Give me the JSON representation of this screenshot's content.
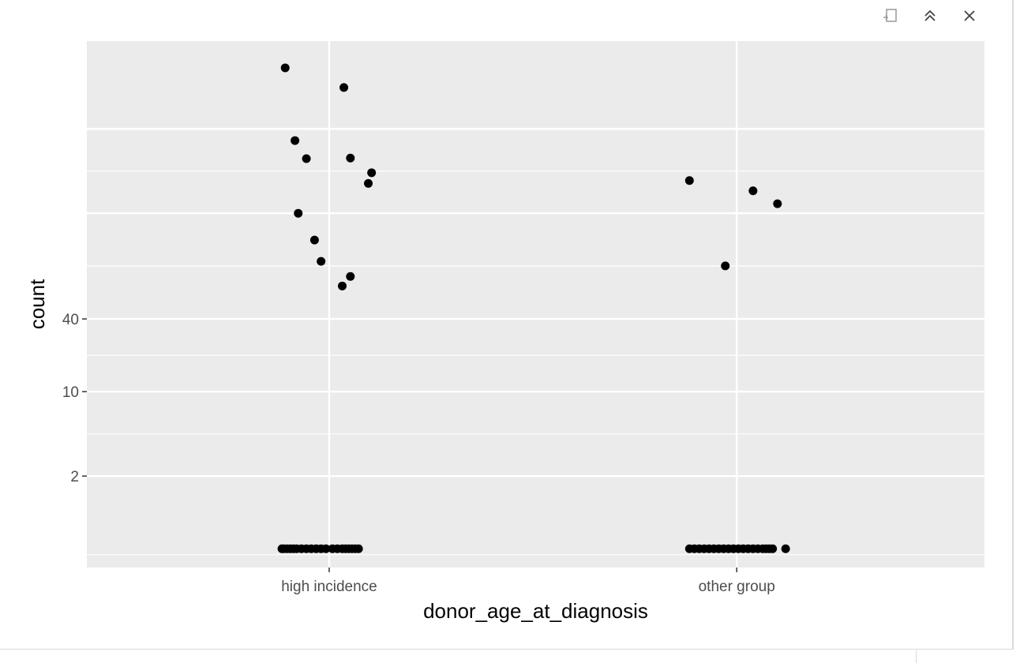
{
  "toolbar": {
    "buttons": [
      {
        "icon": "export-icon"
      },
      {
        "icon": "collapse-up-icon"
      },
      {
        "icon": "close-icon"
      }
    ]
  },
  "chart_data": {
    "type": "scatter",
    "xlabel": "donor_age_at_diagnosis",
    "ylabel": "count",
    "x_scale": "categorical",
    "y_scale": "log",
    "categories": [
      "high incidence",
      "other group"
    ],
    "y_ticks": [
      2,
      10,
      40
    ],
    "ylim": [
      0.35,
      8000
    ],
    "grid": true,
    "points": {
      "high incidence": {
        "jitter": [
          -0.29,
          -0.28,
          -0.26,
          -0.24,
          -0.22,
          -0.2,
          -0.17,
          -0.14,
          -0.11,
          -0.08,
          -0.05,
          -0.02,
          0.02,
          0.05,
          0.08,
          0.1,
          0.12,
          0.14,
          0.16,
          0.18,
          -0.27,
          -0.21,
          -0.14,
          -0.19,
          -0.09,
          -0.05,
          0.09,
          0.13,
          0.24,
          0.26,
          0.13,
          0.08
        ],
        "values": [
          0.5,
          0.5,
          0.5,
          0.5,
          0.5,
          0.5,
          0.5,
          0.5,
          0.5,
          0.5,
          0.5,
          0.5,
          0.5,
          0.5,
          0.5,
          0.5,
          0.5,
          0.5,
          0.5,
          0.5,
          4800,
          1200,
          850,
          300,
          180,
          120,
          3300,
          860,
          530,
          650,
          90,
          75
        ]
      },
      "other group": {
        "jitter": [
          -0.29,
          -0.26,
          -0.23,
          -0.2,
          -0.17,
          -0.14,
          -0.11,
          -0.08,
          -0.05,
          -0.02,
          0.01,
          0.04,
          0.07,
          0.1,
          0.13,
          0.16,
          0.18,
          0.2,
          0.22,
          0.3,
          -0.29,
          0.1,
          0.25,
          -0.07
        ],
        "values": [
          0.5,
          0.5,
          0.5,
          0.5,
          0.5,
          0.5,
          0.5,
          0.5,
          0.5,
          0.5,
          0.5,
          0.5,
          0.5,
          0.5,
          0.5,
          0.5,
          0.5,
          0.5,
          0.5,
          0.5,
          560,
          460,
          360,
          110
        ]
      }
    },
    "colors": {
      "panel": "#ebebeb",
      "grid": "#ffffff",
      "point": "#000000",
      "tick_text": "#4d4d4d"
    }
  }
}
